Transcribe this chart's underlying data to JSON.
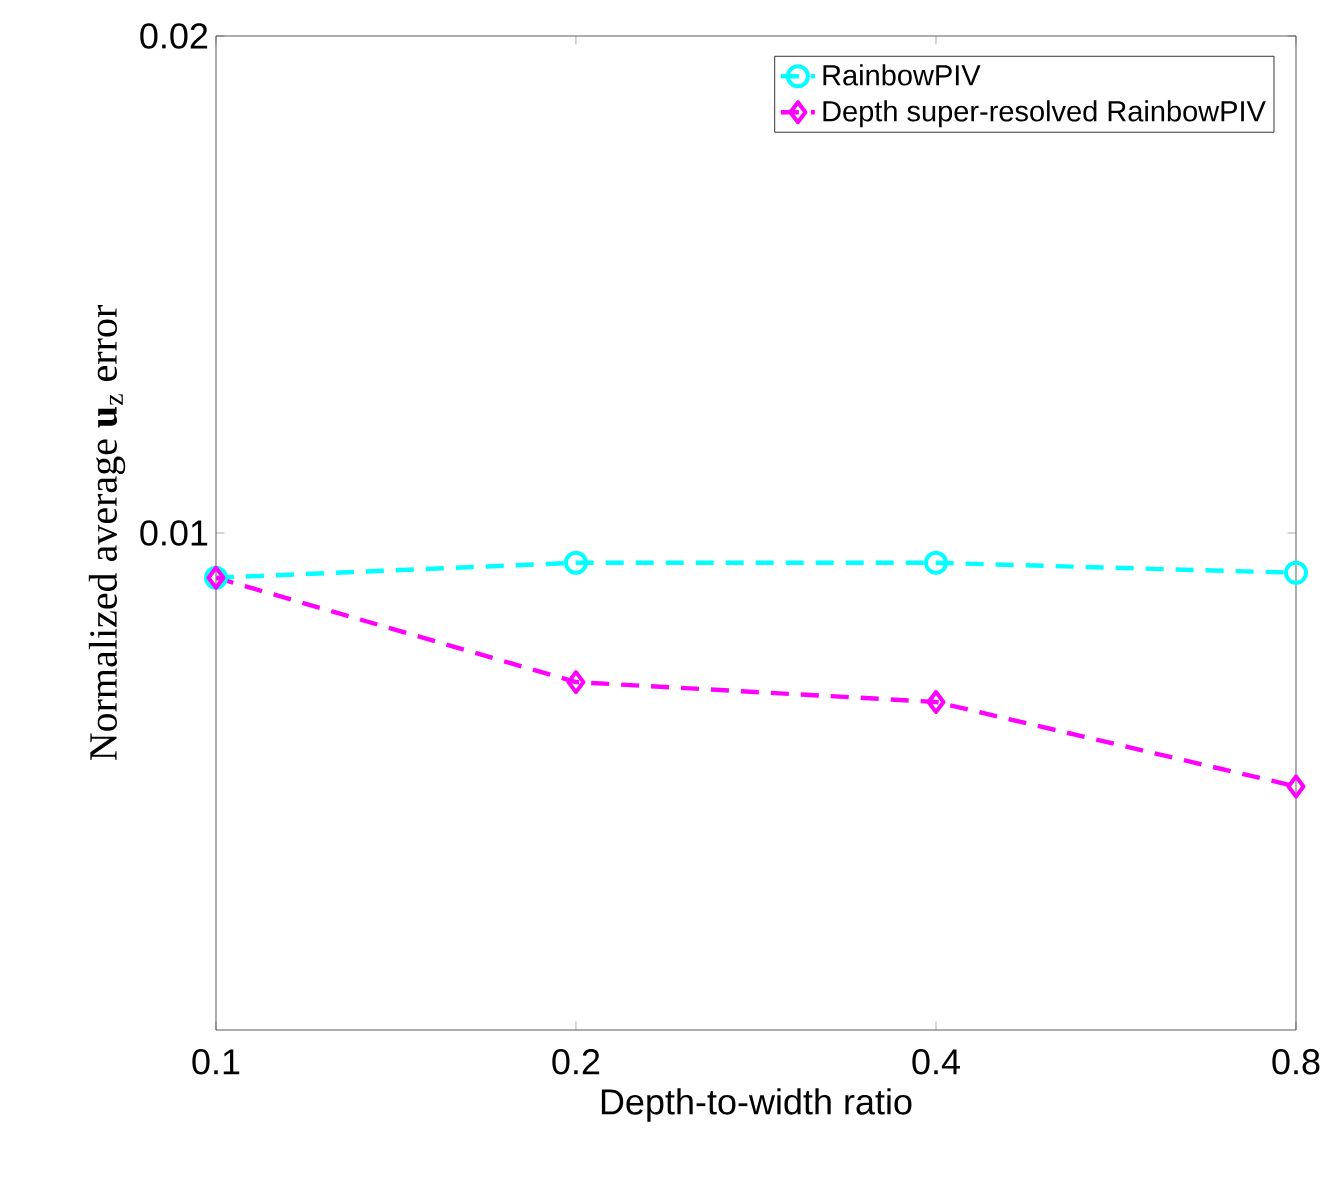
{
  "chart_data": {
    "type": "line",
    "xlabel": "Depth-to-width ratio",
    "ylabel": "Normalized average **u**$_{z}$ error",
    "x": [
      0.1,
      0.2,
      0.4,
      0.8
    ],
    "series": [
      {
        "name": "RainbowPIV",
        "color": "#00ffff",
        "values": [
          0.0091,
          0.0094,
          0.0094,
          0.0092
        ],
        "marker": "circle",
        "line_style": "dashed"
      },
      {
        "name": "Depth super-resolved RainbowPIV",
        "color": "#ff00ff",
        "values": [
          0.0091,
          0.007,
          0.0066,
          0.0049
        ],
        "marker": "diamond",
        "line_style": "dashed"
      }
    ],
    "log": "x",
    "xlim": [
      0.1,
      0.8
    ],
    "ylim": [
      0,
      0.02
    ],
    "xticks": [
      0.1,
      0.2,
      0.4,
      0.8
    ],
    "yticks": [
      0.01,
      0.02
    ],
    "legend": "top right",
    "grid": false
  }
}
